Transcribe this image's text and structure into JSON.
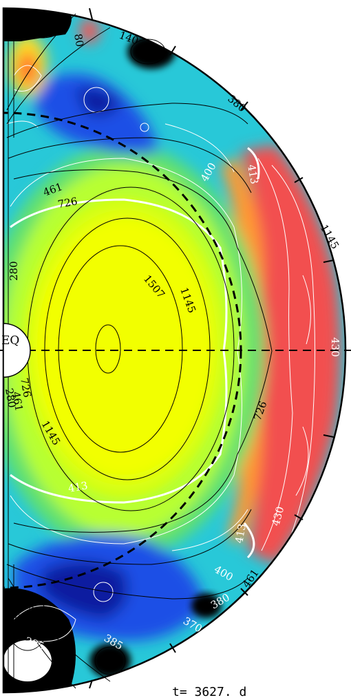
{
  "figure": {
    "equator_label": "EQ",
    "time_label": "t= 3627. d",
    "field_contour_labels": [
      "80",
      "140",
      "280",
      "461",
      "726",
      "1145",
      "1507",
      "1145",
      "726",
      "461",
      "280",
      "726",
      "461",
      "1145",
      "726"
    ],
    "temperature_contour_labels": [
      "380",
      "400",
      "413",
      "461",
      "430",
      "413",
      "430",
      "413",
      "400",
      "461",
      "385",
      "385",
      "380",
      "370"
    ],
    "colors": {
      "hot_red": "#f25050",
      "orange": "#ff8a20",
      "yellow": "#f2ff00",
      "green": "#55e070",
      "cyan": "#28c8d8",
      "blue": "#1e50e6",
      "dark_blue": "#0a1ea0",
      "black": "#000000"
    }
  }
}
